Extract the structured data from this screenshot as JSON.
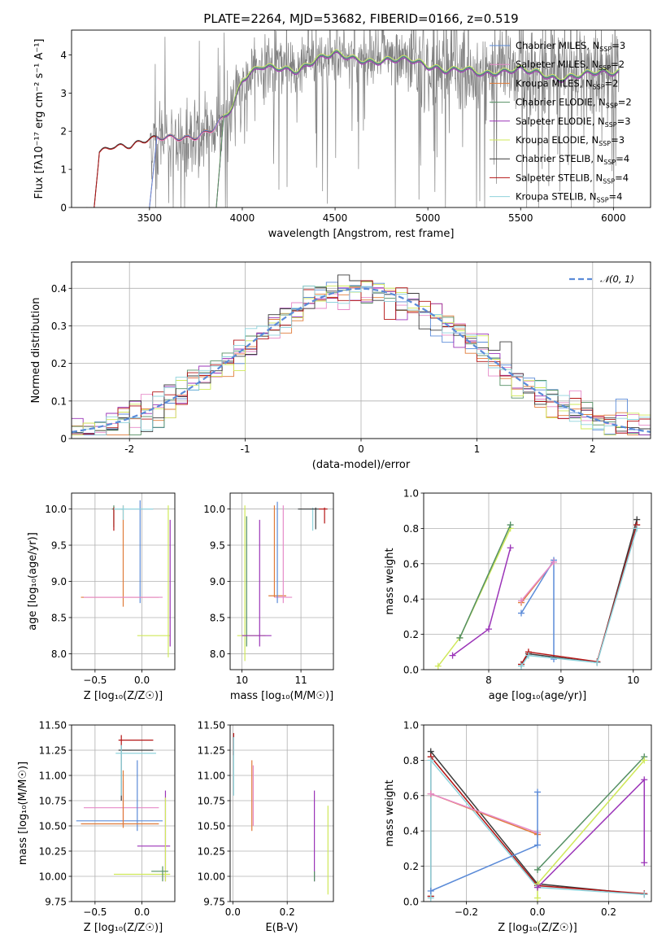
{
  "title": "PLATE=2264, MJD=53682, FIBERID=0166, z=0.519",
  "colors": {
    "chabrier_miles": "#5b8bd8",
    "salpeter_miles": "#e68ac8",
    "kroupa_miles": "#e07b39",
    "chabrier_elodie": "#548f63",
    "salpeter_elodie": "#9b34b8",
    "kroupa_elodie": "#cfe859",
    "chabrier_stelib": "#3c3c3c",
    "salpeter_stelib": "#b41414",
    "kroupa_stelib": "#8fd3dc",
    "data": "#808080",
    "normal": "#5b8bd8"
  },
  "chart_data": [
    {
      "type": "line",
      "id": "spectrum",
      "xlabel": "wavelength [Angstrom, rest frame]",
      "ylabel": "Flux [fλ10⁻¹⁷ erg cm⁻² s⁻¹ A⁻¹]",
      "xlim": [
        3080,
        6200
      ],
      "ylim": [
        0,
        4.65
      ],
      "xticks": [
        3500,
        4000,
        4500,
        5000,
        5500,
        6000
      ],
      "yticks": [
        0,
        1,
        2,
        3,
        4
      ],
      "legend_position": "top-right",
      "legend": [
        {
          "label": "Chabrier MILES, N",
          "sub": "SSP",
          "n": "=3",
          "color_key": "chabrier_miles"
        },
        {
          "label": "Salpeter MILES, N",
          "sub": "SSP",
          "n": "=2",
          "color_key": "salpeter_miles"
        },
        {
          "label": "Kroupa MILES, N",
          "sub": "SSP",
          "n": "=2",
          "color_key": "kroupa_miles"
        },
        {
          "label": "Chabrier ELODIE, N",
          "sub": "SSP",
          "n": "=2",
          "color_key": "chabrier_elodie"
        },
        {
          "label": "Salpeter ELODIE, N",
          "sub": "SSP",
          "n": "=3",
          "color_key": "salpeter_elodie"
        },
        {
          "label": "Kroupa ELODIE, N",
          "sub": "SSP",
          "n": "=3",
          "color_key": "kroupa_elodie"
        },
        {
          "label": "Chabrier STELIB, N",
          "sub": "SSP",
          "n": "=4",
          "color_key": "chabrier_stelib"
        },
        {
          "label": "Salpeter STELIB, N",
          "sub": "SSP",
          "n": "=4",
          "color_key": "salpeter_stelib"
        },
        {
          "label": "Kroupa STELIB, N",
          "sub": "SSP",
          "n": "=4",
          "color_key": "kroupa_stelib"
        }
      ],
      "continuum": {
        "x": [
          3200,
          3230,
          3300,
          3400,
          3500,
          3600,
          3700,
          3760,
          3850,
          3950,
          4000,
          4100,
          4200,
          4300,
          4400,
          4500,
          4600,
          4700,
          4800,
          4900,
          5000,
          5100,
          5200,
          5300,
          5400,
          5500,
          5600,
          5700,
          5800,
          5900,
          6000,
          6050
        ],
        "y": [
          0.02,
          1.5,
          1.65,
          1.6,
          1.75,
          1.82,
          1.85,
          1.9,
          2.1,
          2.6,
          3.3,
          3.7,
          3.7,
          3.6,
          3.85,
          4.0,
          3.9,
          3.85,
          3.9,
          3.85,
          3.65,
          3.6,
          3.7,
          3.5,
          3.5,
          3.6,
          3.55,
          3.4,
          3.45,
          3.5,
          3.5,
          3.55
        ]
      },
      "model_coverage": {
        "miles": [
          3540,
          6030
        ],
        "elodie": [
          3900,
          6030
        ],
        "stelib": [
          3200,
          6030
        ]
      },
      "data_coverage": [
        3500,
        6030
      ]
    },
    {
      "type": "histogram",
      "id": "residuals",
      "xlabel": "(data-model)/error",
      "ylabel": "Normed distribution",
      "xlim": [
        -2.5,
        2.5
      ],
      "ylim": [
        0,
        0.47
      ],
      "xticks": [
        -2,
        -1,
        0,
        1,
        2
      ],
      "yticks": [
        0.0,
        0.1,
        0.2,
        0.3,
        0.4
      ],
      "bin_width": 0.1,
      "legend": [
        {
          "label": "𝒩(0, 1)",
          "style": "dashed",
          "color_key": "normal"
        }
      ],
      "legend_position": "top-right",
      "series_keys": [
        "chabrier_miles",
        "salpeter_miles",
        "kroupa_miles",
        "chabrier_elodie",
        "salpeter_elodie",
        "kroupa_elodie",
        "chabrier_stelib",
        "salpeter_stelib",
        "kroupa_stelib"
      ]
    },
    {
      "type": "errorbar",
      "id": "age_vs_Z",
      "xlabel": "Z [log₁₀(Z/Z☉)]",
      "ylabel": "age  [log₁₀(age/yr)]",
      "xlim": [
        -0.75,
        0.35
      ],
      "ylim": [
        7.78,
        10.22
      ],
      "xticks": [
        -0.5,
        0.0
      ],
      "xtick_labels": [
        "−0.5",
        "0.0"
      ],
      "yticks": [
        8.0,
        8.5,
        9.0,
        9.5,
        10.0
      ],
      "ytick_labels": [
        "8.0",
        "8.5",
        "9.0",
        "9.5",
        "10.0"
      ],
      "points": [
        {
          "k": "chabrier_miles",
          "x": -0.02,
          "y": 10.0,
          "xe": [
            -0.22,
            0.12
          ],
          "ye": [
            8.7,
            10.12
          ]
        },
        {
          "k": "kroupa_miles",
          "x": -0.2,
          "y": 8.78,
          "xe": [
            -0.65,
            0.18
          ],
          "ye": [
            8.65,
            10.05
          ]
        },
        {
          "k": "salpeter_miles",
          "x": -0.2,
          "y": 8.78,
          "xe": [
            -0.62,
            0.22
          ],
          "ye": [
            8.78,
            8.78
          ]
        },
        {
          "k": "kroupa_elodie",
          "x": 0.28,
          "y": 8.25,
          "xe": [
            -0.05,
            0.3
          ],
          "ye": [
            7.95,
            10.05
          ]
        },
        {
          "k": "salpeter_elodie",
          "x": 0.3,
          "y": 9.0,
          "xe": [
            0.3,
            0.3
          ],
          "ye": [
            8.1,
            9.85
          ]
        },
        {
          "k": "chabrier_elodie",
          "x": -0.3,
          "y": 10.0,
          "xe": [
            -0.32,
            -0.2
          ],
          "ye": [
            9.75,
            10.05
          ]
        },
        {
          "k": "salpeter_stelib",
          "x": -0.3,
          "y": 9.8,
          "xe": [
            -0.3,
            -0.3
          ],
          "ye": [
            9.7,
            10.02
          ]
        },
        {
          "k": "kroupa_stelib",
          "x": -0.2,
          "y": 10.0,
          "xe": [
            -0.3,
            0.12
          ],
          "ye": [
            9.85,
            10.05
          ]
        }
      ]
    },
    {
      "type": "errorbar",
      "id": "age_vs_mass",
      "xlabel": "mass [log₁₀(M/M☉)]",
      "ylabel": "",
      "xlim": [
        9.8,
        11.55
      ],
      "ylim": [
        7.78,
        10.22
      ],
      "xticks": [
        10,
        11
      ],
      "xtick_labels": [
        "10",
        "11"
      ],
      "yticks": [
        8.0,
        8.5,
        9.0,
        9.5,
        10.0
      ],
      "ytick_labels": [
        "8.0",
        "8.5",
        "9.0",
        "9.5",
        "10.0"
      ],
      "points": [
        {
          "k": "kroupa_elodie",
          "x": 10.05,
          "y": 8.25,
          "xe": [
            9.92,
            10.4
          ],
          "ye": [
            7.9,
            10.05
          ]
        },
        {
          "k": "chabrier_elodie",
          "x": 10.08,
          "y": 9.0,
          "xe": [
            10.08,
            10.08
          ],
          "ye": [
            8.1,
            9.9
          ]
        },
        {
          "k": "salpeter_elodie",
          "x": 10.3,
          "y": 8.25,
          "xe": [
            10.0,
            10.5
          ],
          "ye": [
            8.1,
            9.85
          ]
        },
        {
          "k": "kroupa_miles",
          "x": 10.55,
          "y": 8.8,
          "xe": [
            10.45,
            10.75
          ],
          "ye": [
            8.78,
            10.05
          ]
        },
        {
          "k": "salpeter_miles",
          "x": 10.7,
          "y": 8.78,
          "xe": [
            10.55,
            10.85
          ],
          "ye": [
            8.7,
            10.05
          ]
        },
        {
          "k": "chabrier_miles",
          "x": 10.6,
          "y": 10.0,
          "xe": [
            10.6,
            10.6
          ],
          "ye": [
            8.7,
            10.1
          ]
        },
        {
          "k": "kroupa_stelib",
          "x": 11.2,
          "y": 10.0,
          "xe": [
            10.95,
            11.4
          ],
          "ye": [
            9.7,
            10.02
          ]
        },
        {
          "k": "salpeter_stelib",
          "x": 11.4,
          "y": 10.0,
          "xe": [
            11.3,
            11.45
          ],
          "ye": [
            9.8,
            10.02
          ]
        },
        {
          "k": "chabrier_stelib",
          "x": 11.25,
          "y": 10.0,
          "xe": [
            10.95,
            11.3
          ],
          "ye": [
            9.72,
            10.02
          ]
        }
      ]
    },
    {
      "type": "line",
      "id": "mass_weight_vs_age",
      "xlabel": "age  [log₁₀(age/yr)]",
      "ylabel": "mass weight",
      "xlim": [
        7.1,
        10.25
      ],
      "ylim": [
        0,
        1.0
      ],
      "xticks": [
        8,
        9,
        10
      ],
      "yticks": [
        0.0,
        0.2,
        0.4,
        0.6,
        0.8,
        1.0
      ],
      "ytick_labels": [
        "0.0",
        "0.2",
        "0.4",
        "0.6",
        "0.8",
        "1.0"
      ],
      "series": [
        {
          "k": "kroupa_elodie",
          "x": [
            7.3,
            7.6,
            8.3
          ],
          "y": [
            0.02,
            0.18,
            0.8
          ]
        },
        {
          "k": "chabrier_elodie",
          "x": [
            7.6,
            8.3
          ],
          "y": [
            0.18,
            0.82
          ]
        },
        {
          "k": "salpeter_elodie",
          "x": [
            7.5,
            8.0,
            8.3
          ],
          "y": [
            0.08,
            0.23,
            0.69
          ]
        },
        {
          "k": "kroupa_miles",
          "x": [
            8.45,
            8.9
          ],
          "y": [
            0.38,
            0.61
          ]
        },
        {
          "k": "chabrier_miles",
          "x": [
            8.45,
            8.9,
            8.9
          ],
          "y": [
            0.32,
            0.62,
            0.06
          ]
        },
        {
          "k": "salpeter_miles",
          "x": [
            8.45,
            8.9
          ],
          "y": [
            0.39,
            0.61
          ]
        },
        {
          "k": "chabrier_stelib",
          "x": [
            8.45,
            8.55,
            9.5,
            10.05
          ],
          "y": [
            0.03,
            0.09,
            0.04,
            0.85
          ]
        },
        {
          "k": "salpeter_stelib",
          "x": [
            8.45,
            8.55,
            9.5,
            10.05
          ],
          "y": [
            0.03,
            0.1,
            0.045,
            0.82
          ]
        },
        {
          "k": "kroupa_stelib",
          "x": [
            8.45,
            8.55,
            9.5,
            10.05
          ],
          "y": [
            0.02,
            0.08,
            0.04,
            0.8
          ]
        }
      ]
    },
    {
      "type": "errorbar",
      "id": "mass_vs_Z",
      "xlabel": "Z [log₁₀(Z/Z☉)]",
      "ylabel": "mass [log₁₀(M/M☉)]",
      "xlim": [
        -0.75,
        0.35
      ],
      "ylim": [
        9.75,
        11.5
      ],
      "xticks": [
        -0.5,
        0.0
      ],
      "xtick_labels": [
        "−0.5",
        "0.0"
      ],
      "yticks": [
        9.75,
        10.0,
        10.25,
        10.5,
        10.75,
        11.0,
        11.25,
        11.5
      ],
      "ytick_labels": [
        "9.75",
        "10.00",
        "10.25",
        "10.50",
        "10.75",
        "11.00",
        "11.25",
        "11.50"
      ],
      "points": [
        {
          "k": "salpeter_stelib",
          "x": -0.22,
          "y": 11.35,
          "xe": [
            -0.25,
            0.12
          ],
          "ye": [
            11.3,
            11.4
          ]
        },
        {
          "k": "chabrier_stelib",
          "x": -0.22,
          "y": 11.25,
          "xe": [
            -0.25,
            0.12
          ],
          "ye": [
            10.75,
            11.3
          ]
        },
        {
          "k": "kroupa_stelib",
          "x": -0.22,
          "y": 11.22,
          "xe": [
            -0.28,
            0.15
          ],
          "ye": [
            10.8,
            11.3
          ]
        },
        {
          "k": "salpeter_miles",
          "x": -0.2,
          "y": 10.68,
          "xe": [
            -0.62,
            0.18
          ],
          "ye": [
            10.5,
            10.95
          ]
        },
        {
          "k": "chabrier_miles",
          "x": -0.05,
          "y": 10.55,
          "xe": [
            -0.7,
            0.22
          ],
          "ye": [
            10.45,
            11.15
          ]
        },
        {
          "k": "kroupa_miles",
          "x": -0.2,
          "y": 10.52,
          "xe": [
            -0.65,
            0.18
          ],
          "ye": [
            10.48,
            11.05
          ]
        },
        {
          "k": "salpeter_elodie",
          "x": 0.25,
          "y": 10.3,
          "xe": [
            -0.05,
            0.3
          ],
          "ye": [
            9.95,
            10.85
          ]
        },
        {
          "k": "kroupa_elodie",
          "x": 0.25,
          "y": 10.02,
          "xe": [
            -0.3,
            0.3
          ],
          "ye": [
            9.95,
            10.78
          ]
        },
        {
          "k": "chabrier_elodie",
          "x": 0.22,
          "y": 10.05,
          "xe": [
            0.1,
            0.28
          ],
          "ye": [
            9.95,
            10.1
          ]
        }
      ]
    },
    {
      "type": "errorbar",
      "id": "mass_vs_EBV",
      "xlabel": "E(B-V)",
      "ylabel": "",
      "xlim": [
        -0.01,
        0.37
      ],
      "ylim": [
        9.75,
        11.5
      ],
      "xticks": [
        0.0,
        0.2
      ],
      "xtick_labels": [
        "0.0",
        "0.2"
      ],
      "yticks": [
        9.75,
        10.0,
        10.25,
        10.5,
        10.75,
        11.0,
        11.25,
        11.5
      ],
      "ytick_labels": [
        "9.75",
        "10.00",
        "10.25",
        "10.50",
        "10.75",
        "11.00",
        "11.25",
        "11.50"
      ],
      "points": [
        {
          "k": "salpeter_stelib",
          "x": 0.003,
          "y": 11.35,
          "xe": [
            0.003,
            0.003
          ],
          "ye": [
            11.2,
            11.42
          ]
        },
        {
          "k": "kroupa_stelib",
          "x": 0.003,
          "y": 11.2,
          "xe": [
            0.003,
            0.003
          ],
          "ye": [
            10.8,
            11.38
          ]
        },
        {
          "k": "kroupa_miles",
          "x": 0.07,
          "y": 10.8,
          "xe": [
            0.07,
            0.07
          ],
          "ye": [
            10.45,
            11.15
          ]
        },
        {
          "k": "salpeter_miles",
          "x": 0.075,
          "y": 10.75,
          "xe": [
            0.075,
            0.075
          ],
          "ye": [
            10.5,
            11.1
          ]
        },
        {
          "k": "salpeter_elodie",
          "x": 0.3,
          "y": 10.4,
          "xe": [
            0.3,
            0.3
          ],
          "ye": [
            9.95,
            10.85
          ]
        },
        {
          "k": "chabrier_elodie",
          "x": 0.3,
          "y": 10.0,
          "xe": [
            0.3,
            0.3
          ],
          "ye": [
            9.95,
            10.05
          ]
        },
        {
          "k": "kroupa_elodie",
          "x": 0.35,
          "y": 10.25,
          "xe": [
            0.35,
            0.35
          ],
          "ye": [
            9.82,
            10.7
          ]
        }
      ]
    },
    {
      "type": "line",
      "id": "mass_weight_vs_Z",
      "xlabel": "Z [log₁₀(Z/Z☉)]",
      "ylabel": "mass weight",
      "xlim": [
        -0.32,
        0.32
      ],
      "ylim": [
        0,
        1.0
      ],
      "xticks": [
        -0.2,
        0.0,
        0.2
      ],
      "xtick_labels": [
        "−0.2",
        "0.0",
        "0.2"
      ],
      "yticks": [
        0.0,
        0.2,
        0.4,
        0.6,
        0.8,
        1.0
      ],
      "ytick_labels": [
        "0.0",
        "0.2",
        "0.4",
        "0.6",
        "0.8",
        "1.0"
      ],
      "series": [
        {
          "k": "chabrier_stelib",
          "x": [
            -0.3,
            -0.3,
            0.0,
            0.3
          ],
          "y": [
            0.03,
            0.85,
            0.1,
            0.04
          ]
        },
        {
          "k": "salpeter_stelib",
          "x": [
            -0.3,
            -0.3,
            0.0,
            0.3
          ],
          "y": [
            0.03,
            0.82,
            0.09,
            0.045
          ]
        },
        {
          "k": "kroupa_stelib",
          "x": [
            -0.3,
            -0.3,
            0.0,
            0.3
          ],
          "y": [
            0.02,
            0.8,
            0.08,
            0.04
          ]
        },
        {
          "k": "kroupa_miles",
          "x": [
            -0.3,
            0.0
          ],
          "y": [
            0.61,
            0.38
          ]
        },
        {
          "k": "salpeter_miles",
          "x": [
            -0.3,
            0.0
          ],
          "y": [
            0.61,
            0.39
          ]
        },
        {
          "k": "chabrier_miles",
          "x": [
            -0.3,
            0.0,
            0.0
          ],
          "y": [
            0.06,
            0.32,
            0.62
          ]
        },
        {
          "k": "chabrier_elodie",
          "x": [
            0.0,
            0.3
          ],
          "y": [
            0.18,
            0.82
          ]
        },
        {
          "k": "kroupa_elodie",
          "x": [
            0.0,
            0.0,
            0.3
          ],
          "y": [
            0.02,
            0.1,
            0.8
          ]
        },
        {
          "k": "salpeter_elodie",
          "x": [
            0.0,
            0.3,
            0.3
          ],
          "y": [
            0.08,
            0.69,
            0.22
          ]
        }
      ]
    }
  ]
}
